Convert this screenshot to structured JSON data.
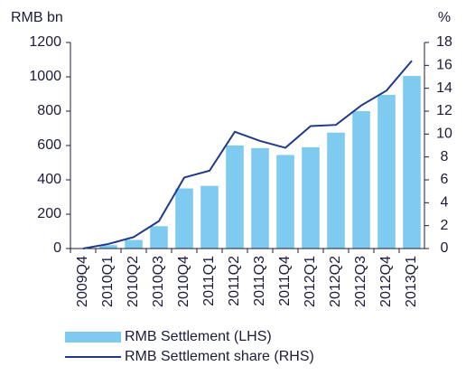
{
  "chart_data": {
    "type": "bar_line",
    "ylabel": "RMB bn",
    "y2label": "%",
    "categories": [
      "2009Q4",
      "2010Q1",
      "2010Q2",
      "2010Q3",
      "2010Q4",
      "2011Q1",
      "2011Q2",
      "2011Q3",
      "2011Q4",
      "2012Q1",
      "2012Q2",
      "2012Q3",
      "2012Q4",
      "2013Q1"
    ],
    "series": [
      {
        "name": "RMB Settlement (LHS)",
        "type": "bar",
        "color": "#7ecbef",
        "values": [
          2,
          20,
          50,
          130,
          350,
          365,
          600,
          585,
          545,
          590,
          675,
          800,
          895,
          1005
        ]
      },
      {
        "name": "RMB Settlement share (RHS)",
        "type": "line",
        "axis": "y2",
        "color": "#1f3a8a",
        "values": [
          0,
          0.4,
          1,
          2.4,
          6.2,
          6.8,
          10.2,
          9.4,
          8.8,
          10.7,
          10.8,
          12.5,
          13.8,
          16.4
        ]
      }
    ],
    "ylim": [
      0,
      1200
    ],
    "yticks": [
      0,
      200,
      400,
      600,
      800,
      1000,
      1200
    ],
    "y2lim": [
      0,
      18
    ],
    "y2ticks": [
      0,
      2,
      4,
      6,
      8,
      10,
      12,
      14,
      16,
      18
    ]
  }
}
